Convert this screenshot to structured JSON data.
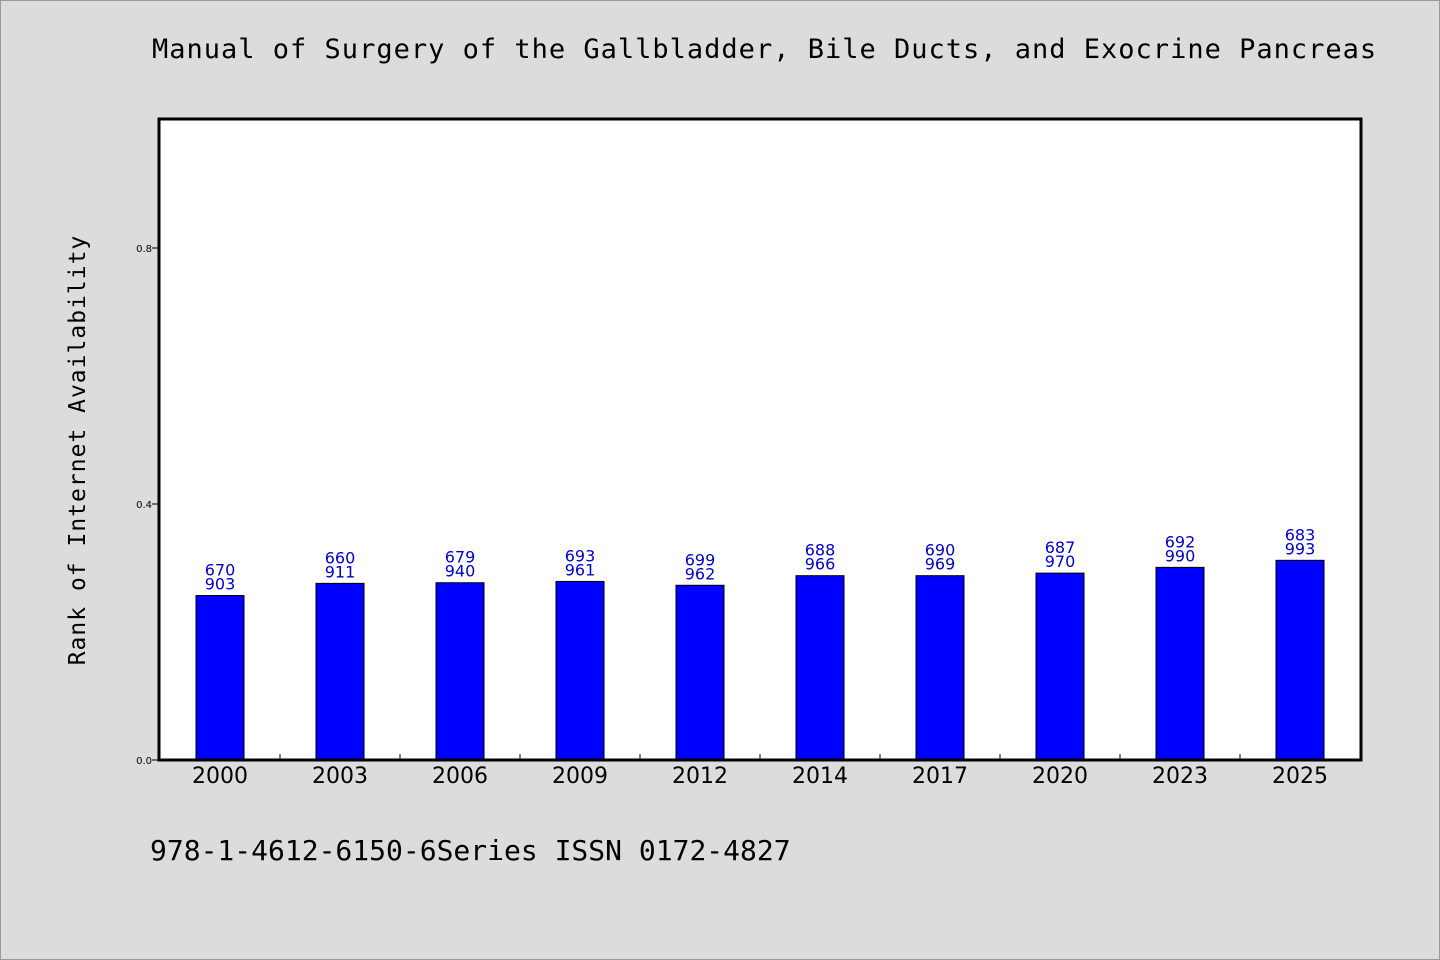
{
  "title": "Manual of Surgery of the Gallbladder, Bile Ducts, and Exocrine Pancreas",
  "footer": "978-1-4612-6150-6Series ISSN 0172-4827",
  "colors": {
    "bar": "#0000ff",
    "data_label": "#0000cc",
    "plot_bg": "#ffffff",
    "page_bg": "#dcdcdc"
  },
  "chart_data": {
    "type": "bar",
    "title": "Manual of Surgery of the Gallbladder, Bile Ducts, and Exocrine Pancreas",
    "xlabel": "",
    "ylabel": "Rank of Internet Availability",
    "ylim": [
      0,
      1.0
    ],
    "yticks": [
      0.0,
      0.4,
      0.8
    ],
    "ytick_labels": [
      "0.0",
      "0.4",
      "0.8"
    ],
    "grid": false,
    "categories": [
      "2000",
      "2003",
      "2006",
      "2009",
      "2012",
      "2014",
      "2017",
      "2020",
      "2023",
      "2025"
    ],
    "values": [
      0.257,
      0.276,
      0.277,
      0.279,
      0.273,
      0.288,
      0.288,
      0.292,
      0.301,
      0.312
    ],
    "data_labels_top": [
      "670",
      "660",
      "679",
      "693",
      "699",
      "688",
      "690",
      "687",
      "692",
      "683"
    ],
    "data_labels_bottom": [
      "903",
      "911",
      "940",
      "961",
      "962",
      "966",
      "969",
      "970",
      "990",
      "993"
    ]
  }
}
